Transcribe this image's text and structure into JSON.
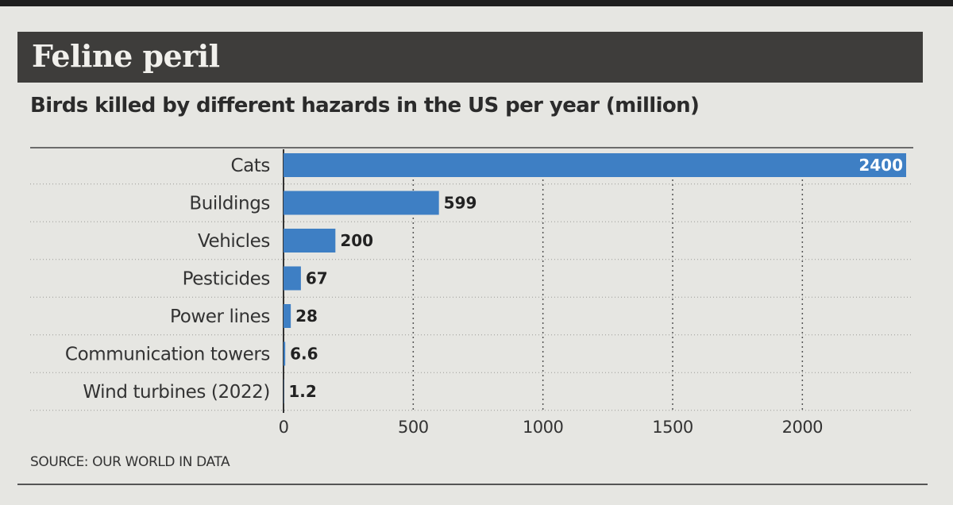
{
  "header": {
    "title": "Feline peril",
    "subtitle": "Birds killed by different hazards in the US per year (million)"
  },
  "footer": {
    "source": "SOURCE: OUR WORLD IN DATA"
  },
  "colors": {
    "bar": "#3e7fc4",
    "title_bg": "#3e3d3b",
    "background": "#e6e6e2"
  },
  "chart_data": {
    "type": "bar",
    "orientation": "horizontal",
    "title": "Feline peril",
    "subtitle": "Birds killed by different hazards in the US per year (million)",
    "categories": [
      "Cats",
      "Buildings",
      "Vehicles",
      "Pesticides",
      "Power lines",
      "Communication towers",
      "Wind turbines (2022)"
    ],
    "values": [
      2400,
      599,
      200,
      67,
      28,
      6.6,
      1.2
    ],
    "value_labels": [
      "2400",
      "599",
      "200",
      "67",
      "28",
      "6.6",
      "1.2"
    ],
    "xlim": [
      0,
      2400
    ],
    "xticks": [
      0,
      500,
      1000,
      1500,
      2000
    ],
    "xtick_labels": [
      "0",
      "500",
      "1000",
      "1500",
      "2000"
    ],
    "xlabel": "",
    "ylabel": "",
    "grid": "vertical dotted",
    "source": "SOURCE: OUR WORLD IN DATA"
  }
}
